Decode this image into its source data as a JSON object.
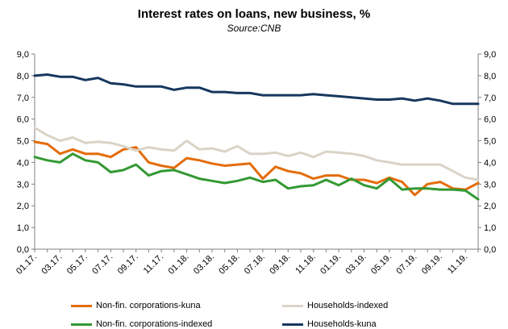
{
  "chart_data": {
    "type": "line",
    "title": "Interest rates on loans, new business, %",
    "subtitle": "Source:CNB",
    "xlabel": "",
    "ylabel": "",
    "ylim": [
      0,
      9
    ],
    "y_ticks": [
      "0,0",
      "1,0",
      "2,0",
      "3,0",
      "4,0",
      "5,0",
      "6,0",
      "7,0",
      "8,0",
      "9,0"
    ],
    "x": [
      "01.17.",
      "02.17.",
      "03.17.",
      "04.17.",
      "05.17.",
      "06.17.",
      "07.17.",
      "08.17.",
      "09.17.",
      "10.17.",
      "11.17.",
      "12.17.",
      "01.18.",
      "02.18.",
      "03.18.",
      "04.18.",
      "05.18.",
      "06.18.",
      "07.18.",
      "08.18.",
      "09.18.",
      "10.18.",
      "11.18.",
      "12.18.",
      "01.19.",
      "02.19.",
      "03.19.",
      "04.19.",
      "05.19.",
      "06.19.",
      "07.19.",
      "08.19.",
      "09.19.",
      "10.19.",
      "11.19.",
      "12.19."
    ],
    "x_tick_labels": [
      "01.17.",
      "03.17.",
      "05.17.",
      "07.17.",
      "09.17.",
      "11.17.",
      "01.18.",
      "03.18.",
      "05.18.",
      "07.18.",
      "09.18.",
      "11.18.",
      "01.19.",
      "03.19.",
      "05.19.",
      "07.19.",
      "09.19.",
      "11.19."
    ],
    "grid": false,
    "legend_position": "bottom",
    "series": [
      {
        "name": "Non-fin. corporations-kuna",
        "color": "#E46C0A",
        "values": [
          4.95,
          4.85,
          4.4,
          4.6,
          4.4,
          4.4,
          4.25,
          4.6,
          4.7,
          4.0,
          3.85,
          3.75,
          4.2,
          4.1,
          3.95,
          3.85,
          3.9,
          3.95,
          3.25,
          3.8,
          3.6,
          3.5,
          3.25,
          3.4,
          3.4,
          3.2,
          3.2,
          3.05,
          3.3,
          3.1,
          2.5,
          3.0,
          3.1,
          2.8,
          2.75,
          3.05
        ]
      },
      {
        "name": "Non-fin. corporations-indexed",
        "color": "#339933",
        "values": [
          4.25,
          4.1,
          4.0,
          4.4,
          4.1,
          4.0,
          3.55,
          3.65,
          3.9,
          3.4,
          3.6,
          3.65,
          3.45,
          3.25,
          3.15,
          3.05,
          3.15,
          3.3,
          3.1,
          3.2,
          2.8,
          2.9,
          2.95,
          3.2,
          2.95,
          3.25,
          2.95,
          2.8,
          3.25,
          2.75,
          2.8,
          2.8,
          2.75,
          2.75,
          2.7,
          2.3
        ]
      },
      {
        "name": "Households-indexed",
        "color": "#D9D4C7",
        "values": [
          5.6,
          5.25,
          5.0,
          5.15,
          4.9,
          4.95,
          4.9,
          4.75,
          4.55,
          4.7,
          4.6,
          4.55,
          5.0,
          4.6,
          4.65,
          4.5,
          4.75,
          4.4,
          4.4,
          4.45,
          4.3,
          4.45,
          4.25,
          4.5,
          4.45,
          4.4,
          4.3,
          4.1,
          4.0,
          3.9,
          3.9,
          3.9,
          3.9,
          3.6,
          3.3,
          3.2
        ]
      },
      {
        "name": "Households-kuna",
        "color": "#17375E",
        "values": [
          8.0,
          8.05,
          7.95,
          7.95,
          7.8,
          7.9,
          7.65,
          7.6,
          7.5,
          7.5,
          7.5,
          7.35,
          7.45,
          7.45,
          7.25,
          7.25,
          7.2,
          7.2,
          7.1,
          7.1,
          7.1,
          7.1,
          7.15,
          7.1,
          7.05,
          7.0,
          6.95,
          6.9,
          6.9,
          6.95,
          6.85,
          6.95,
          6.85,
          6.7,
          6.7,
          6.7
        ]
      }
    ]
  }
}
